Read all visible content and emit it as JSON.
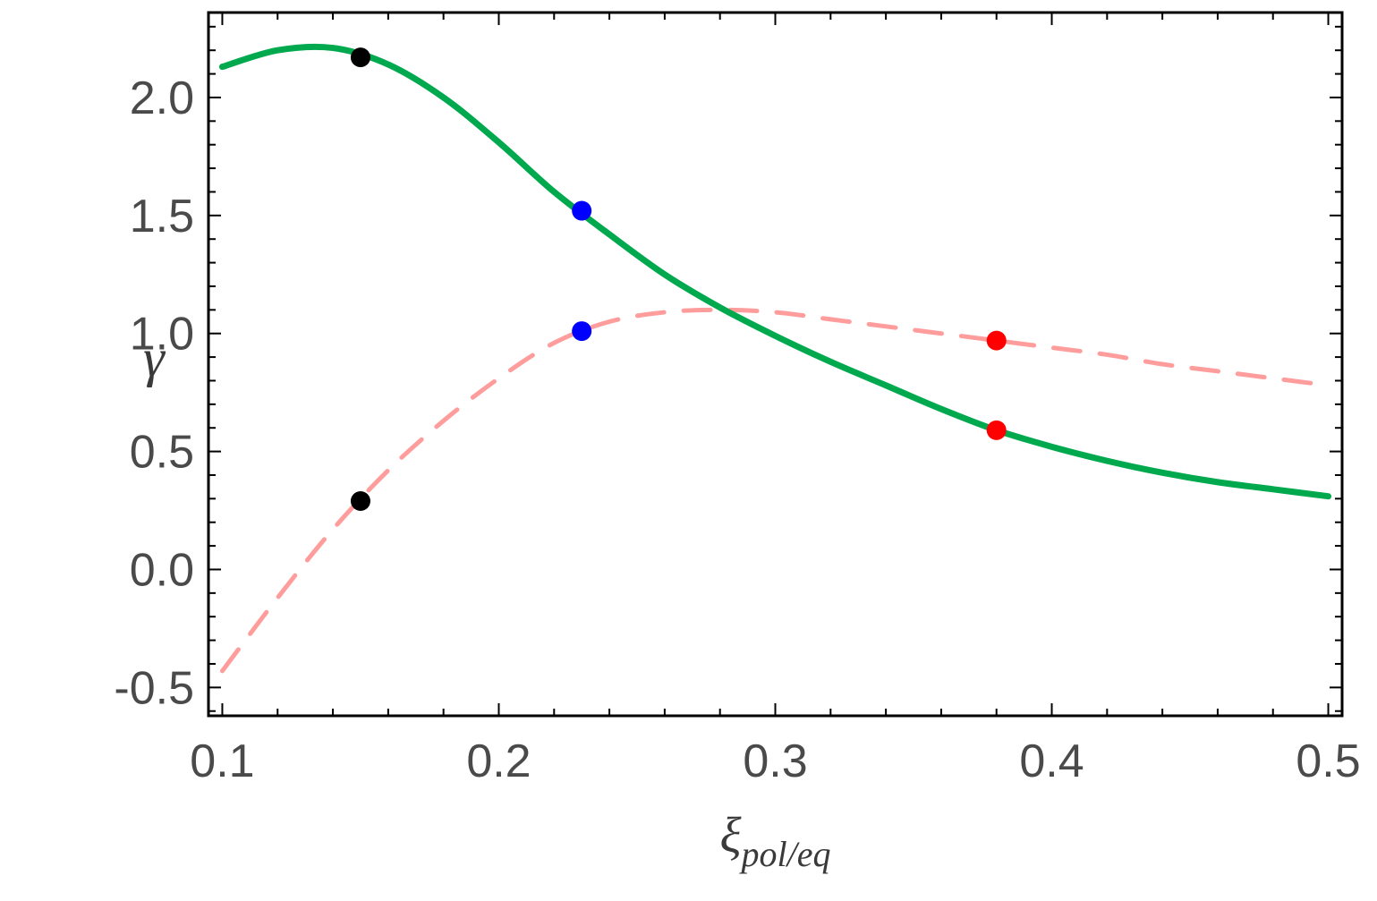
{
  "chart_data": {
    "type": "line",
    "title": "",
    "xlabel": {
      "base": "ξ",
      "subscript": "pol/eq"
    },
    "ylabel": "γ",
    "xlim": [
      0.095,
      0.505
    ],
    "ylim": [
      -0.62,
      2.36
    ],
    "x_ticks": {
      "values": [
        0.1,
        0.2,
        0.3,
        0.4,
        0.5
      ],
      "labels": [
        "0.1",
        "0.2",
        "0.3",
        "0.4",
        "0.5"
      ],
      "minor_step": 0.02
    },
    "y_ticks": {
      "values": [
        -0.5,
        0.0,
        0.5,
        1.0,
        1.5,
        2.0
      ],
      "labels": [
        "-0.5",
        "0.0",
        "0.5",
        "1.0",
        "1.5",
        "2.0"
      ],
      "minor_step": 0.1
    },
    "grid": false,
    "legend": null,
    "frame": true,
    "colors": {
      "frame": "#000000",
      "tick_marks": "#000000",
      "tick_labels": "#4a4a4a",
      "axis_labels": "#3a3a3a",
      "background": "#ffffff"
    },
    "series": [
      {
        "name": "solid-green-curve",
        "color": "#00a94e",
        "style": "solid",
        "stroke_width": 7,
        "x": [
          0.1,
          0.12,
          0.14,
          0.16,
          0.18,
          0.2,
          0.22,
          0.24,
          0.26,
          0.28,
          0.3,
          0.32,
          0.34,
          0.36,
          0.38,
          0.4,
          0.42,
          0.44,
          0.46,
          0.48,
          0.5
        ],
        "y": [
          2.13,
          2.2,
          2.21,
          2.14,
          2.0,
          1.81,
          1.6,
          1.42,
          1.25,
          1.11,
          0.99,
          0.88,
          0.78,
          0.68,
          0.59,
          0.52,
          0.46,
          0.41,
          0.37,
          0.34,
          0.31
        ]
      },
      {
        "name": "dashed-pink-curve",
        "color": "#ff9d9d",
        "style": "dashed",
        "stroke_width": 5,
        "dash": [
          30,
          22
        ],
        "x": [
          0.1,
          0.12,
          0.14,
          0.16,
          0.18,
          0.2,
          0.22,
          0.24,
          0.26,
          0.28,
          0.3,
          0.32,
          0.34,
          0.36,
          0.38,
          0.4,
          0.42,
          0.44,
          0.46,
          0.48,
          0.5
        ],
        "y": [
          -0.43,
          -0.12,
          0.17,
          0.42,
          0.63,
          0.81,
          0.96,
          1.05,
          1.09,
          1.1,
          1.09,
          1.06,
          1.03,
          1.0,
          0.97,
          0.94,
          0.91,
          0.87,
          0.84,
          0.81,
          0.78
        ]
      }
    ],
    "markers": [
      {
        "name": "black-dot-upper",
        "color": "#000000",
        "x": 0.15,
        "y": 2.17
      },
      {
        "name": "black-dot-lower",
        "color": "#000000",
        "x": 0.15,
        "y": 0.29
      },
      {
        "name": "blue-dot-upper",
        "color": "#0000ff",
        "x": 0.23,
        "y": 1.52
      },
      {
        "name": "blue-dot-lower",
        "color": "#0000ff",
        "x": 0.23,
        "y": 1.01
      },
      {
        "name": "red-dot-upper",
        "color": "#ff0000",
        "x": 0.38,
        "y": 0.97
      },
      {
        "name": "red-dot-lower",
        "color": "#ff0000",
        "x": 0.38,
        "y": 0.59
      }
    ],
    "marker_radius": 11
  }
}
